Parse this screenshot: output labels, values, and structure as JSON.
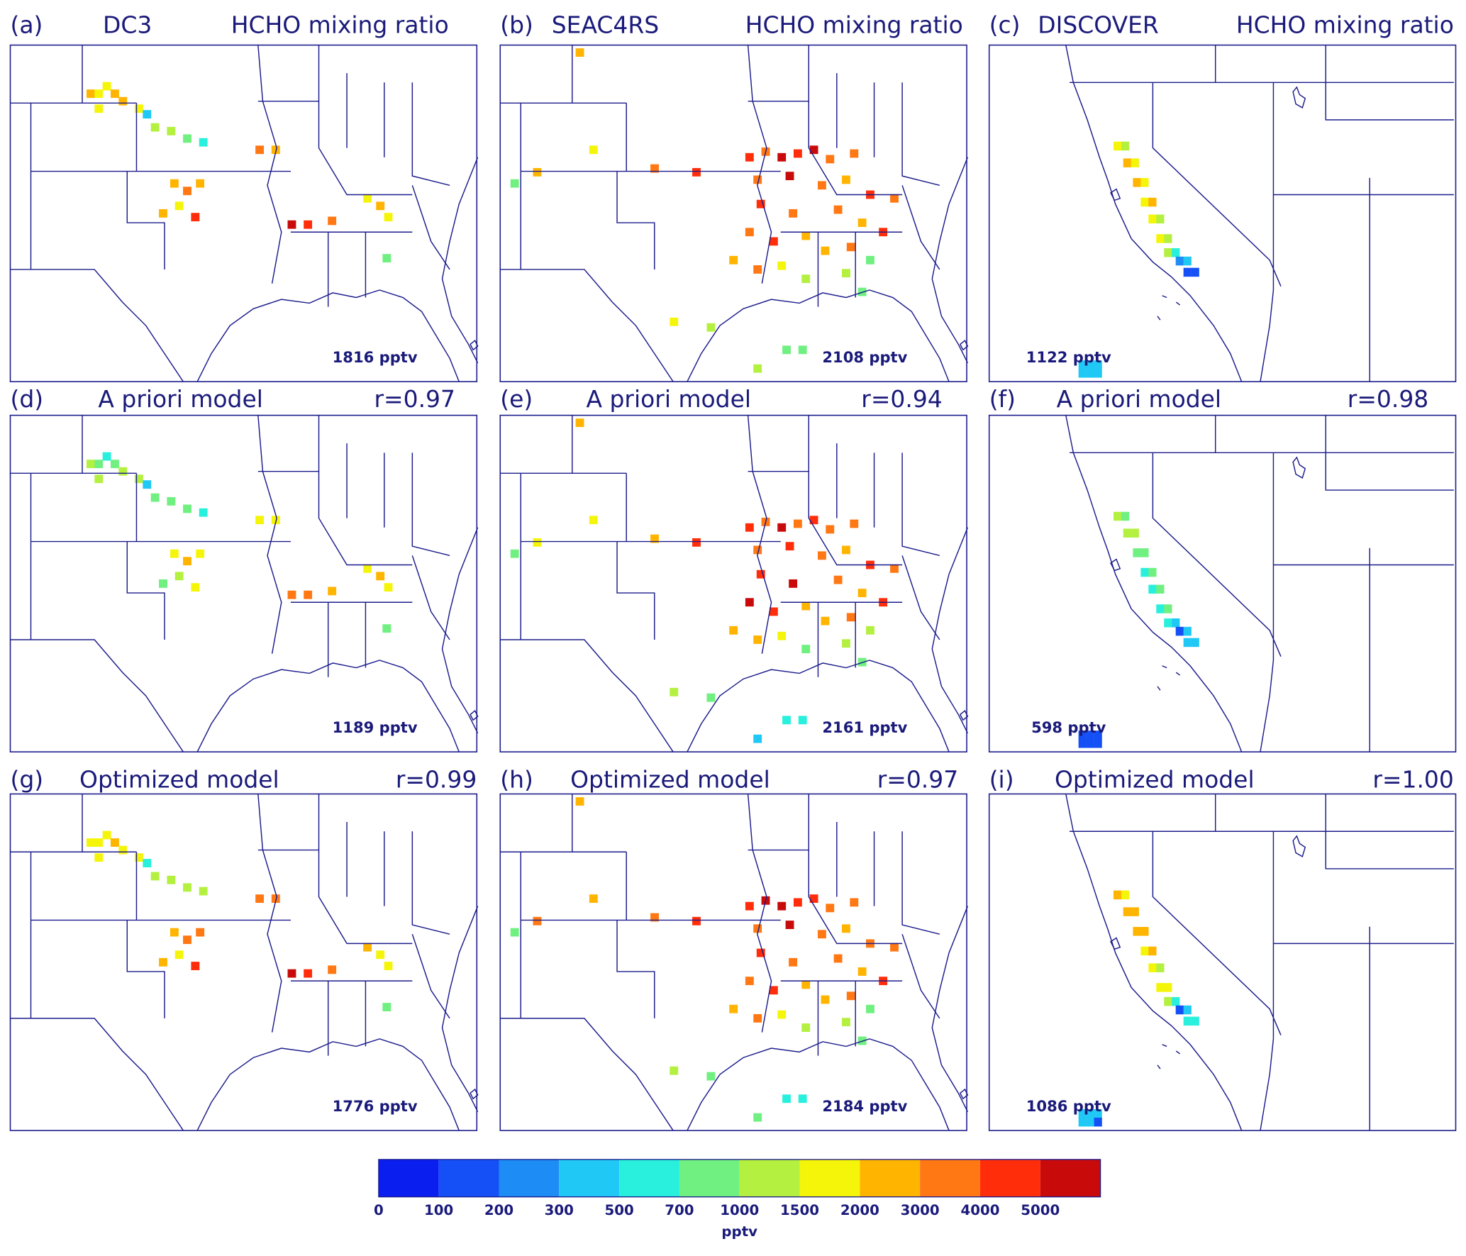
{
  "campaigns": [
    {
      "lon": [
        -103.0,
        -102.5,
        -102.0,
        -101.5,
        -101.0,
        -102.5,
        -100.0,
        -99.5,
        -99.0,
        -98.0,
        -97.0,
        -96.0,
        -92.5,
        -91.5,
        -97.8,
        -97.0,
        -96.2,
        -97.5,
        -98.5,
        -96.5,
        -90.5,
        -89.5,
        -88.0,
        -85.8,
        -85.0,
        -84.5,
        -84.6
      ],
      "lat": [
        39.4,
        39.4,
        39.8,
        39.4,
        39.0,
        38.6,
        38.6,
        38.3,
        37.6,
        37.4,
        37.0,
        36.8,
        36.4,
        36.4,
        34.6,
        34.2,
        34.6,
        33.4,
        33.0,
        32.8,
        32.4,
        32.4,
        32.6,
        33.8,
        33.4,
        32.8,
        30.6
      ],
      "xlim": [
        -108,
        -79
      ],
      "ylim": [
        24,
        42
      ]
    },
    {
      "lon": [
        -103.05,
        -102.2,
        -105.7,
        -107.1,
        -95.8,
        -98.4,
        -90.2,
        -89.2,
        -94.9,
        -97.2,
        -92.0,
        -92.5,
        -91.5,
        -90.5,
        -89.5,
        -88.5,
        -87.5,
        -86.0,
        -92.0,
        -90.0,
        -88.0,
        -86.5,
        -85.0,
        -83.5,
        -91.8,
        -89.8,
        -87.0,
        -85.5,
        -84.2,
        -92.5,
        -91.0,
        -89.0,
        -87.8,
        -86.2,
        -85.0,
        -93.5,
        -92.0,
        -90.5,
        -89.0,
        -86.5,
        -85.5
      ],
      "lat": [
        41.6,
        36.4,
        35.2,
        34.6,
        35.2,
        35.4,
        25.7,
        25.7,
        26.9,
        27.2,
        24.7,
        36.0,
        36.3,
        36.0,
        36.2,
        36.4,
        35.9,
        36.2,
        34.8,
        35.0,
        34.5,
        34.8,
        34.0,
        33.8,
        33.5,
        33.0,
        33.2,
        32.5,
        32.0,
        32.0,
        31.5,
        31.8,
        31.0,
        31.2,
        30.5,
        30.5,
        30.0,
        30.2,
        29.5,
        29.8,
        28.8
      ],
      "xlim": [
        -108,
        -79
      ],
      "ylim": [
        24,
        42
      ]
    },
    {
      "lon": [
        -121.7,
        -121.5,
        -121.45,
        -121.25,
        -121.2,
        -121.0,
        -121.0,
        -120.8,
        -120.8,
        -120.6,
        -120.6,
        -120.4,
        -120.4,
        -120.2,
        -120.1,
        -119.9,
        -119.9,
        -119.7,
        -122.6,
        -122.4,
        -122.2,
        -122.6,
        -122.4,
        -122.2
      ],
      "lat": [
        39.4,
        39.4,
        38.8,
        38.8,
        38.1,
        38.1,
        37.4,
        37.4,
        36.8,
        36.8,
        36.1,
        36.1,
        35.6,
        35.6,
        35.3,
        35.3,
        34.9,
        34.9,
        31.6,
        31.6,
        31.6,
        31.3,
        31.3,
        31.3
      ],
      "xlim": [
        -125,
        -113
      ],
      "ylim": [
        31,
        43
      ]
    }
  ],
  "rows": [
    [
      {
        "label": "(a)",
        "title": "DC3",
        "subtitle": "HCHO mixing ratio",
        "mean": {
          "value": 1816,
          "label": "1816 pptv"
        },
        "values": [
          2500,
          1800,
          1500,
          2500,
          2200,
          1800,
          1800,
          400,
          1200,
          1200,
          900,
          600,
          3500,
          2500,
          2500,
          3000,
          2500,
          1800,
          2500,
          4500,
          5500,
          4500,
          3500,
          1800,
          2200,
          1500,
          700
        ]
      },
      {
        "label": "(b)",
        "title": "SEAC4RS",
        "subtitle": "HCHO mixing ratio",
        "mean": {
          "value": 2108,
          "label": "2108 pptv"
        },
        "values": [
          2000,
          1800,
          2500,
          700,
          4000,
          3000,
          700,
          700,
          1000,
          1500,
          1000,
          4000,
          3500,
          5500,
          4500,
          5000,
          3000,
          3500,
          3000,
          5500,
          3000,
          2500,
          4000,
          3000,
          4500,
          3000,
          3500,
          2500,
          4500,
          3500,
          4000,
          2500,
          2000,
          3000,
          700,
          2500,
          3000,
          1500,
          1000,
          1200,
          800
        ]
      },
      {
        "label": "(c)",
        "title": "DISCOVER",
        "subtitle": "HCHO mixing ratio",
        "mean": {
          "value": 1122,
          "label": "1122 pptv"
        },
        "values": [
          1500,
          1200,
          2000,
          1800,
          2000,
          1500,
          1800,
          2000,
          1500,
          1200,
          1500,
          1000,
          1200,
          600,
          200,
          300,
          100,
          100,
          400,
          400,
          400,
          400,
          400,
          400
        ]
      }
    ],
    [
      {
        "label": "(d)",
        "title": "A priori model",
        "r": {
          "value": 0.97,
          "label": "r=0.97"
        },
        "mean": {
          "value": 1189,
          "label": "1189 pptv"
        },
        "values": [
          1200,
          900,
          600,
          800,
          1200,
          1000,
          1200,
          400,
          800,
          700,
          800,
          600,
          1800,
          1600,
          1800,
          2200,
          1600,
          1200,
          900,
          1500,
          3500,
          3000,
          2500,
          1800,
          2200,
          1600,
          800
        ]
      },
      {
        "label": "(e)",
        "title": "A priori model",
        "r": {
          "value": 0.94,
          "label": "r=0.94"
        },
        "mean": {
          "value": 2161,
          "label": "2161 pptv"
        },
        "values": [
          2000,
          1500,
          1800,
          900,
          4000,
          2500,
          500,
          500,
          700,
          1200,
          400,
          4000,
          3500,
          5500,
          3000,
          4500,
          3000,
          3000,
          3500,
          4500,
          3500,
          2500,
          4000,
          3500,
          4500,
          5000,
          3000,
          2500,
          4000,
          5000,
          4500,
          2500,
          2000,
          3000,
          1000,
          2000,
          2500,
          1500,
          800,
          1000,
          700
        ]
      },
      {
        "label": "(f)",
        "title": "A priori model",
        "r": {
          "value": 0.98,
          "label": "r=0.98"
        },
        "mean": {
          "value": 598,
          "label": "598 pptv"
        },
        "values": [
          1000,
          800,
          1200,
          1000,
          700,
          900,
          600,
          800,
          500,
          700,
          600,
          800,
          500,
          300,
          100,
          400,
          400,
          300,
          150,
          150,
          150,
          150,
          150,
          150
        ]
      }
    ],
    [
      {
        "label": "(g)",
        "title": "Optimized model",
        "r": {
          "value": 0.99,
          "label": "r=0.99"
        },
        "mean": {
          "value": 1776,
          "label": "1776 pptv"
        },
        "values": [
          1800,
          1600,
          1500,
          2000,
          1800,
          1600,
          1800,
          600,
          1200,
          1200,
          1000,
          1200,
          3500,
          3000,
          2500,
          3500,
          3500,
          1800,
          2500,
          4000,
          5500,
          4500,
          3500,
          2200,
          1800,
          1500,
          800
        ]
      },
      {
        "label": "(h)",
        "title": "Optimized model",
        "r": {
          "value": 0.97,
          "label": "r=0.97"
        },
        "mean": {
          "value": 2184,
          "label": "2184 pptv"
        },
        "values": [
          2500,
          2000,
          3000,
          900,
          4000,
          3000,
          500,
          500,
          800,
          1200,
          700,
          4500,
          5500,
          5500,
          4500,
          4000,
          3500,
          3000,
          3000,
          5000,
          3500,
          2500,
          3500,
          3000,
          4500,
          3500,
          3000,
          2500,
          4000,
          3000,
          4500,
          2500,
          2500,
          3500,
          900,
          2500,
          3000,
          1500,
          1000,
          1200,
          900
        ]
      },
      {
        "label": "(i)",
        "title": "Optimized model",
        "r": {
          "value": 1,
          "label": "r=1.00"
        },
        "mean": {
          "value": 1086,
          "label": "1086 pptv"
        },
        "values": [
          2000,
          1500,
          2500,
          2000,
          2200,
          2500,
          1800,
          2500,
          1500,
          1200,
          1800,
          1500,
          1200,
          600,
          100,
          400,
          500,
          500,
          400,
          400,
          400,
          400,
          350,
          100
        ]
      }
    ]
  ],
  "colorbar": {
    "levels": [
      0,
      100,
      200,
      300,
      500,
      700,
      1000,
      1500,
      2000,
      3000,
      4000,
      5000
    ],
    "colors": [
      "#0a1ef0",
      "#1450f5",
      "#1e8cf5",
      "#20c8f5",
      "#28f0dc",
      "#70f080",
      "#b4f040",
      "#f5f50a",
      "#ffb400",
      "#ff7814",
      "#ff2d0a",
      "#c80a0a"
    ],
    "unit": "pptv"
  }
}
